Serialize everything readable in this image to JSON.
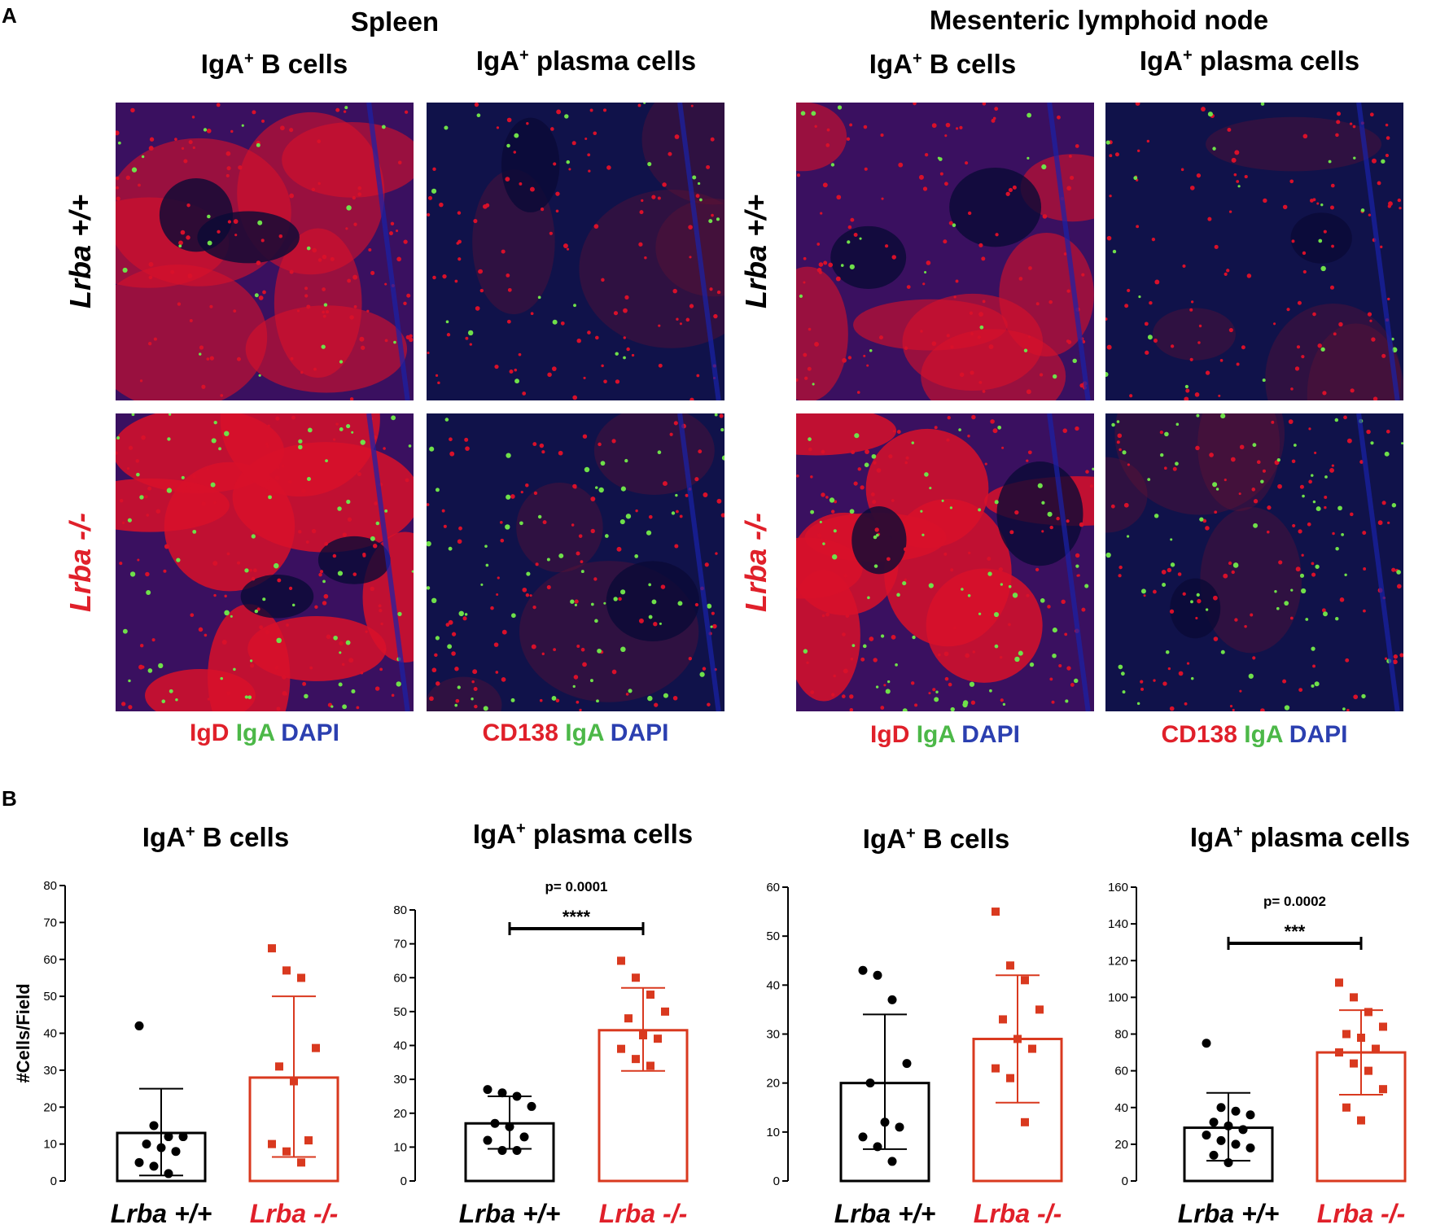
{
  "panel_labels": {
    "a": "A",
    "b": "B"
  },
  "panel_a": {
    "group_titles": [
      "Spleen",
      "Mesenteric lymphoid node"
    ],
    "column_titles": [
      {
        "text": "IgA",
        "sup": "+",
        "rest": " B cells"
      },
      {
        "text": "IgA",
        "sup": "+",
        "rest": " plasma cells"
      },
      {
        "text": "IgA",
        "sup": "+",
        "rest": " B cells"
      },
      {
        "text": "IgA",
        "sup": "+",
        "rest": " plasma cells"
      }
    ],
    "row_labels": {
      "wt": "Lrba +/+",
      "ko": "Lrba -/-"
    },
    "stain_legends": [
      [
        {
          "t": "IgD",
          "c": "#e0202a"
        },
        {
          "t": "IgA",
          "c": "#4cb848"
        },
        {
          "t": "DAPI",
          "c": "#2b3fb0"
        }
      ],
      [
        {
          "t": "CD138",
          "c": "#e0202a"
        },
        {
          "t": "IgA",
          "c": "#4cb848"
        },
        {
          "t": "DAPI",
          "c": "#2b3fb0"
        }
      ],
      [
        {
          "t": "IgD",
          "c": "#e0202a"
        },
        {
          "t": "IgA",
          "c": "#4cb848"
        },
        {
          "t": "DAPI",
          "c": "#2b3fb0"
        }
      ],
      [
        {
          "t": "CD138",
          "c": "#e0202a"
        },
        {
          "t": "IgA",
          "c": "#4cb848"
        },
        {
          "t": "DAPI",
          "c": "#2b3fb0"
        }
      ]
    ],
    "colors": {
      "wt_label": "#000000",
      "ko_label": "#e0202a",
      "red": "#d8102a",
      "green": "#6fe04a",
      "blue": "#1a22a8"
    }
  },
  "chart_data": [
    {
      "type": "bar",
      "title": "IgA+ B cells",
      "ylabel": "#Cells/Field",
      "ylim": [
        0,
        80
      ],
      "yticks": [
        0,
        10,
        20,
        30,
        40,
        50,
        60,
        70,
        80
      ],
      "categories": [
        "Lrba +/+",
        "Lrba -/-"
      ],
      "values": [
        13,
        28
      ],
      "sd": [
        [
          1.5,
          25
        ],
        [
          6.5,
          50
        ]
      ],
      "points": [
        [
          42,
          15,
          12,
          12,
          10,
          9,
          8,
          5,
          4,
          2
        ],
        [
          63,
          57,
          55,
          36,
          31,
          27,
          11,
          10,
          8,
          5
        ]
      ],
      "significance": null
    },
    {
      "type": "bar",
      "title": "IgA+ plasma cells",
      "ylabel": "",
      "ylim": [
        0,
        80
      ],
      "yticks": [
        0,
        10,
        20,
        30,
        40,
        50,
        60,
        70,
        80
      ],
      "categories": [
        "Lrba +/+",
        "Lrba -/-"
      ],
      "values": [
        17,
        44.5
      ],
      "sd": [
        [
          9.5,
          25
        ],
        [
          32.5,
          57
        ]
      ],
      "points": [
        [
          27,
          26,
          25,
          22,
          17,
          16,
          13,
          12,
          9,
          9
        ],
        [
          65,
          60,
          55,
          50,
          48,
          43,
          42,
          39,
          36,
          34
        ]
      ],
      "significance": {
        "p": "p= 0.0001",
        "stars": "****"
      }
    },
    {
      "type": "bar",
      "title": "IgA+ B cells",
      "ylabel": "",
      "ylim": [
        0,
        60
      ],
      "yticks": [
        0,
        10,
        20,
        30,
        40,
        50,
        60
      ],
      "categories": [
        "Lrba +/+",
        "Lrba -/-"
      ],
      "values": [
        20,
        29
      ],
      "sd": [
        [
          6.5,
          34
        ],
        [
          16,
          42
        ]
      ],
      "points": [
        [
          43,
          42,
          37,
          24,
          20,
          12,
          11,
          9,
          7,
          4
        ],
        [
          55,
          44,
          41,
          35,
          33,
          29,
          27,
          23,
          21,
          12
        ]
      ],
      "significance": null
    },
    {
      "type": "bar",
      "title": "IgA+ plasma cells",
      "ylabel": "",
      "ylim": [
        0,
        160
      ],
      "yticks": [
        0,
        20,
        40,
        60,
        80,
        100,
        120,
        140,
        160
      ],
      "categories": [
        "Lrba +/+",
        "Lrba -/-"
      ],
      "values": [
        29,
        70
      ],
      "sd": [
        [
          11,
          48
        ],
        [
          47,
          93
        ]
      ],
      "points": [
        [
          75,
          40,
          38,
          36,
          32,
          30,
          28,
          25,
          22,
          20,
          18,
          14,
          10
        ],
        [
          108,
          100,
          92,
          84,
          80,
          78,
          72,
          70,
          64,
          60,
          50,
          40,
          33
        ]
      ],
      "significance": {
        "p": "p= 0.0002",
        "stars": "***"
      }
    }
  ]
}
